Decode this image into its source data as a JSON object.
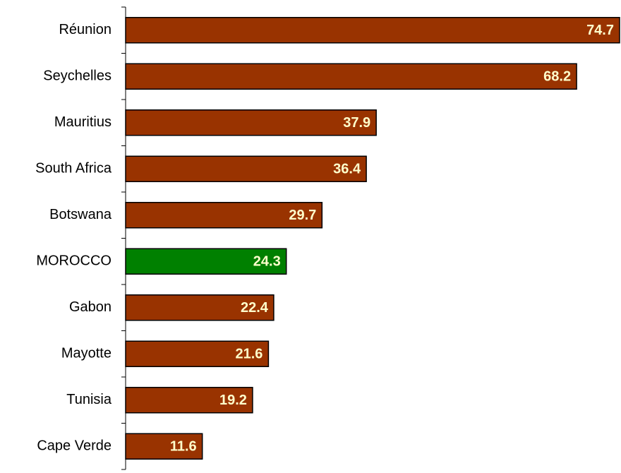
{
  "chart_data": {
    "type": "bar",
    "orientation": "horizontal",
    "categories": [
      "Réunion",
      "Seychelles",
      "Mauritius",
      "South Africa",
      "Botswana",
      "MOROCCO",
      "Gabon",
      "Mayotte",
      "Tunisia",
      "Cape Verde"
    ],
    "values": [
      74.7,
      68.2,
      37.9,
      36.4,
      29.7,
      24.3,
      22.4,
      21.6,
      19.2,
      11.6
    ],
    "colors": [
      "#993300",
      "#993300",
      "#993300",
      "#993300",
      "#993300",
      "#008000",
      "#993300",
      "#993300",
      "#993300",
      "#993300"
    ],
    "label_color": "#ffffcc"
  }
}
